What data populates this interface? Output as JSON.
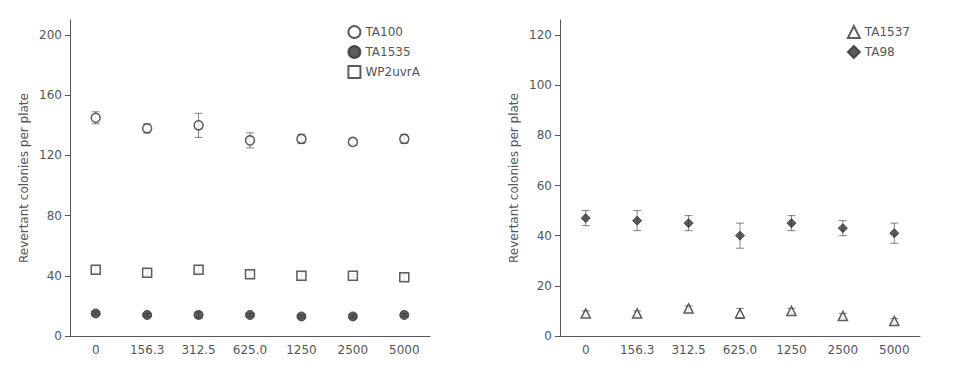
{
  "chart_data": [
    {
      "type": "scatter",
      "categories": [
        "0",
        "156.3",
        "312.5",
        "625.0",
        "1250",
        "2500",
        "5000"
      ],
      "ylabel": "Revertant colonies per plate",
      "ylim": [
        0,
        210
      ],
      "yticks": [
        0,
        40,
        80,
        120,
        160,
        200
      ],
      "grid": false,
      "legend": "upper right",
      "series": [
        {
          "name": "TA100",
          "color": "#333333",
          "marker": "circle-open",
          "values": [
            145,
            138,
            140,
            130,
            131,
            129,
            131
          ],
          "errors": [
            4,
            3,
            8,
            5,
            3,
            2,
            3
          ]
        },
        {
          "name": "TA1535",
          "color": "#333333",
          "marker": "circle",
          "values": [
            15,
            14,
            14,
            14,
            13,
            13,
            14
          ],
          "errors": [
            1,
            1,
            2,
            1,
            1,
            1,
            1
          ]
        },
        {
          "name": "WP2uvrA",
          "color": "#333333",
          "marker": "square-open",
          "values": [
            44,
            42,
            44,
            41,
            40,
            40,
            39
          ],
          "errors": [
            2,
            2,
            2,
            2,
            2,
            1,
            2
          ]
        }
      ]
    },
    {
      "type": "scatter",
      "categories": [
        "0",
        "156.3",
        "312.5",
        "625.0",
        "1250",
        "2500",
        "5000"
      ],
      "ylabel": "Revertant colonies per plate",
      "ylim": [
        0,
        126
      ],
      "yticks": [
        0,
        20,
        40,
        60,
        80,
        100,
        120
      ],
      "grid": false,
      "legend": "upper right",
      "series": [
        {
          "name": "TA1537",
          "color": "#333333",
          "marker": "triangle-open",
          "values": [
            9,
            9,
            11,
            9,
            10,
            8,
            6
          ],
          "errors": [
            1,
            1,
            1,
            2,
            1,
            1,
            1
          ]
        },
        {
          "name": "TA98",
          "color": "#333333",
          "marker": "diamond",
          "values": [
            47,
            46,
            45,
            40,
            45,
            43,
            41
          ],
          "errors": [
            3,
            4,
            3,
            5,
            3,
            3,
            4
          ]
        }
      ]
    }
  ]
}
